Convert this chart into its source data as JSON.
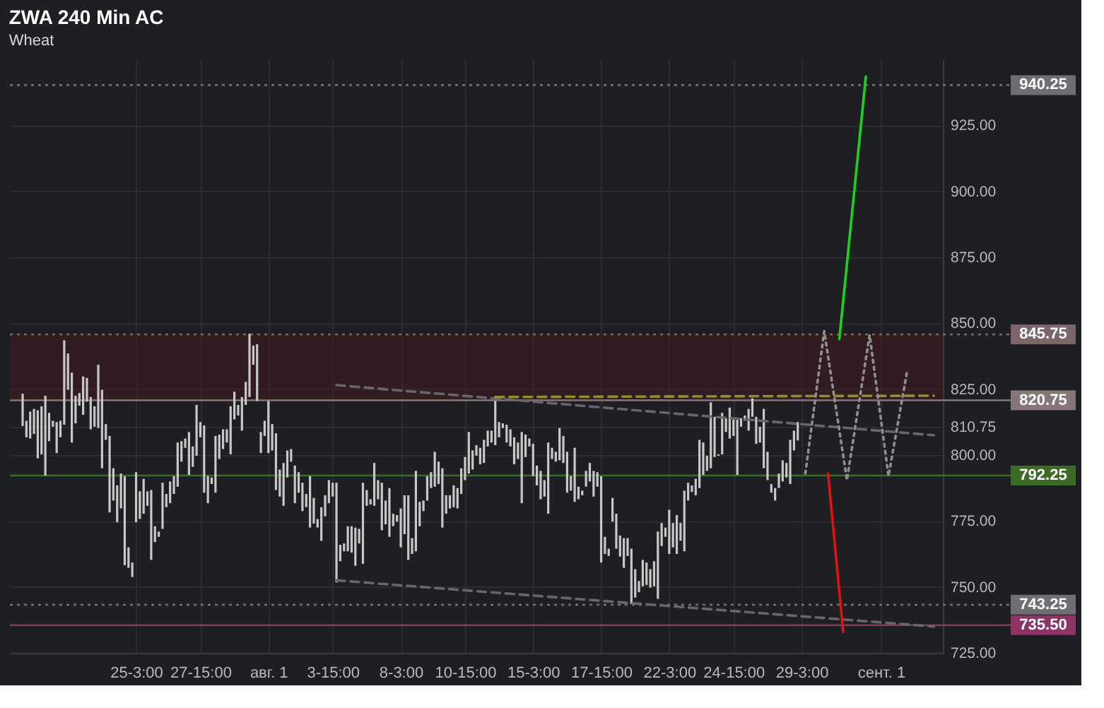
{
  "chart_data": {
    "type": "bar",
    "title": "ZWA 240 Min AC",
    "subtitle": "Wheat",
    "categories": [
      null,
      null,
      null,
      null,
      null,
      null,
      null,
      null,
      null,
      null,
      null,
      null,
      null,
      null,
      null,
      null,
      null,
      null,
      null,
      null,
      null,
      null,
      null,
      null,
      null,
      null,
      null,
      null,
      null,
      null,
      "25-3:00",
      null,
      null,
      null,
      null,
      null,
      null,
      null,
      null,
      null,
      null,
      null,
      null,
      null,
      null,
      null,
      null,
      "27-15:00",
      null,
      null,
      null,
      null,
      null,
      null,
      null,
      null,
      null,
      null,
      null,
      null,
      null,
      null,
      null,
      null,
      null,
      "авг. 1",
      null,
      null,
      null,
      null,
      null,
      null,
      null,
      null,
      null,
      null,
      null,
      null,
      null,
      null,
      null,
      null,
      "3-15:00",
      null,
      null,
      null,
      null,
      null,
      null,
      null,
      null,
      null,
      null,
      null,
      null,
      null,
      null,
      null,
      null,
      null,
      "8-3:00",
      null,
      null,
      null,
      null,
      null,
      null,
      null,
      null,
      null,
      null,
      null,
      null,
      null,
      null,
      null,
      null,
      "10-15:00",
      null,
      null,
      null,
      null,
      null,
      null,
      null,
      null,
      null,
      null,
      null,
      null,
      null,
      null,
      null,
      null,
      null,
      "15-3:00",
      null,
      null,
      null,
      null,
      null,
      null,
      null,
      null,
      null,
      null,
      null,
      null,
      null,
      null,
      null,
      null,
      null,
      "17-15:00",
      null,
      null,
      null,
      null,
      null,
      null,
      null,
      null,
      null,
      null,
      null,
      null,
      null,
      null,
      null,
      null,
      null,
      "22-3:00",
      null,
      null,
      null,
      null,
      null,
      null,
      null,
      null,
      null,
      null,
      null,
      null,
      null,
      null,
      null,
      null,
      "24-15:00",
      null,
      null,
      null,
      null,
      null,
      null,
      null,
      null,
      null,
      null,
      null,
      null,
      null,
      null,
      null,
      null,
      null,
      "29-3:00",
      null,
      null,
      null,
      null,
      null,
      null,
      null,
      null,
      null,
      null,
      null,
      null,
      null,
      null,
      null,
      null,
      null,
      null,
      null,
      null,
      "сент. 1",
      null,
      null,
      null,
      null,
      null,
      null,
      null,
      null,
      null,
      null,
      null,
      null,
      null,
      null
    ],
    "series": [
      {
        "color": "#c8c8c8",
        "base": [
          811.0,
          806.75,
          806.25,
          808.0,
          798.75,
          800.25,
          792.25,
          805.25,
          810.75,
          800.75,
          806.75,
          811.5,
          824.75,
          804.75,
          812.0,
          818.75,
          815.25,
          820.25,
          809.75,
          810.75,
          810.25,
          795.0,
          805.75,
          778.25,
          782.75,
          774.5,
          779.75,
          758.25,
          757.25,
          753.75,
          774.5,
          775.75,
          777.75,
          780.75,
          760.25,
          767.0,
          769.0,
          772.0,
          780.25,
          781.75,
          785.25,
          788.0,
          797.5,
          802.75,
          792.5,
          795.5,
          799.75,
          806.75,
          785.75,
          781.75,
          789.0,
          785.75,
          798.5,
          802.25,
          804.75,
          800.25,
          813.5,
          815.0,
          809.25,
          819.0,
          822.0,
          834.25,
          820.5,
          800.75,
          807.25,
          800.75,
          801.75,
          786.75,
          784.25,
          780.75,
          791.5,
          797.5,
          781.75,
          785.75,
          778.75,
          780.25,
          772.5,
          774.0,
          772.5,
          767.5,
          776.75,
          781.75,
          784.25,
          751.75,
          759.75,
          763.5,
          763.5,
          763.0,
          758.0,
          766.5,
          758.75,
          780.75,
          781.25,
          780.75,
          783.25,
          771.5,
          773.75,
          769.0,
          773.0,
          774.75,
          765.0,
          770.0,
          760.25,
          762.5,
          763.5,
          773.0,
          778.75,
          782.75,
          787.5,
          788.0,
          789.0,
          772.5,
          777.75,
          779.75,
          780.25,
          779.75,
          785.25,
          790.5,
          793.0,
          794.5,
          799.75,
          796.5,
          797.0,
          803.25,
          804.75,
          803.75,
          806.75,
          810.25,
          804.75,
          803.25,
          796.5,
          798.5,
          781.75,
          799.25,
          803.25,
          792.0,
          788.5,
          783.25,
          784.25,
          777.75,
          798.5,
          797.5,
          798.0,
          797.0,
          785.75,
          786.5,
          782.25,
          783.25,
          784.75,
          788.0,
          790.0,
          784.25,
          788.0,
          759.25,
          762.5,
          761.75,
          774.75,
          764.5,
          761.5,
          757.25,
          761.75,
          743.5,
          746.0,
          748.0,
          750.25,
          750.75,
          749.75,
          750.25,
          745.5,
          765.5,
          769.0,
          762.5,
          765.0,
          762.5,
          767.5,
          763.5,
          782.75,
          786.0,
          784.75,
          787.5,
          792.5,
          794.0,
          795.0,
          799.25,
          799.75,
          800.25,
          808.75,
          806.25,
          807.25,
          792.5,
          810.75,
          813.0,
          809.25,
          814.5,
          804.25,
          804.75,
          795.0,
          790.5,
          785.75,
          782.75,
          787.5,
          790.0,
          791.5,
          789.0,
          801.75,
          805.5,
          null,
          null,
          null,
          null,
          null,
          null,
          null,
          null,
          null,
          null,
          null,
          null,
          null,
          null,
          null,
          null,
          null,
          null,
          null,
          null,
          null,
          null,
          null,
          null,
          null,
          null,
          null,
          null,
          null,
          null,
          null,
          null,
          null,
          null,
          null,
          null
        ],
        "values": [
          12.25,
          6.25,
          10.25,
          9.5,
          18.25,
          18.25,
          30.25,
          10.75,
          2.25,
          11.75,
          6.25,
          32.0,
          13.75,
          26.5,
          10.5,
          4.75,
          14.5,
          9.0,
          12.25,
          7.75,
          24.0,
          29.75,
          6.0,
          29.0,
          12.25,
          14.0,
          13.25,
          33.75,
          7.75,
          5.5,
          19.0,
          10.5,
          13.25,
          5.5,
          26.5,
          6.0,
          2.0,
          17.5,
          5.0,
          8.25,
          6.75,
          16.75,
          7.75,
          3.5,
          16.25,
          7.75,
          19.25,
          5.75,
          25.5,
          10.25,
          2.5,
          21.5,
          9.25,
          7.5,
          5.0,
          18.25,
          10.5,
          4.0,
          12.75,
          8.75,
          24.0,
          7.25,
          21.5,
          8.0,
          5.75,
          19.75,
          10.0,
          21.5,
          10.25,
          16.25,
          10.25,
          4.75,
          14.25,
          7.75,
          10.75,
          5.0,
          19.5,
          9.75,
          3.25,
          12.75,
          8.0,
          8.75,
          5.25,
          37.75,
          6.25,
          3.0,
          9.5,
          10.0,
          14.5,
          5.5,
          30.75,
          6.0,
          2.0,
          16.25,
          7.25,
          18.0,
          9.0,
          18.5,
          4.75,
          2.5,
          14.75,
          14.75,
          24.5,
          6.0,
          30.5,
          9.25,
          4.0,
          9.25,
          6.0,
          13.25,
          8.5,
          22.5,
          7.0,
          5.0,
          8.25,
          7.75,
          9.75,
          8.75,
          15.75,
          7.25,
          4.0,
          6.25,
          8.75,
          6.0,
          4.5,
          16.75,
          5.75,
          1.75,
          6.75,
          6.5,
          10.25,
          6.25,
          27.0,
          8.5,
          3.0,
          12.25,
          7.5,
          10.75,
          6.25,
          27.0,
          4.25,
          3.75,
          12.25,
          10.25,
          15.5,
          5.5,
          20.5,
          4.75,
          1.75,
          6.0,
          7.0,
          9.75,
          5.5,
          32.75,
          6.5,
          2.75,
          9.0,
          13.25,
          8.0,
          11.25,
          6.75,
          21.0,
          10.75,
          4.25,
          10.0,
          8.5,
          7.0,
          9.5,
          25.5,
          8.75,
          3.5,
          16.75,
          9.25,
          14.75,
          6.75,
          23.0,
          6.75,
          2.5,
          6.25,
          18.25,
          12.25,
          5.75,
          25.0,
          15.25,
          0.5,
          15.75,
          5.25,
          11.75,
          6.75,
          21.5,
          3.25,
          2.0,
          8.25,
          7.0,
          10.25,
          6.0,
          22.5,
          10.75,
          3.25,
          4.75,
          5.5,
          8.0,
          5.5,
          16.75,
          7.5,
          7.0,
          null,
          null,
          null,
          null,
          null,
          null,
          null,
          null,
          null,
          null,
          null,
          null,
          null,
          null,
          null,
          null,
          null,
          null,
          null,
          null,
          null,
          null,
          null,
          null,
          null,
          null,
          null,
          null,
          null,
          null,
          null,
          null,
          null,
          null,
          null,
          null
        ]
      },
      {
        "type": "line",
        "color": "#66666b",
        "line_style": "dashed",
        "values": [
          null,
          null,
          null,
          null,
          null,
          null,
          null,
          null,
          null,
          null,
          null,
          null,
          null,
          null,
          null,
          null,
          null,
          null,
          null,
          null,
          null,
          null,
          null,
          null,
          null,
          null,
          null,
          null,
          null,
          null,
          null,
          null,
          null,
          null,
          null,
          null,
          null,
          null,
          null,
          null,
          null,
          null,
          null,
          null,
          null,
          null,
          null,
          null,
          null,
          null,
          null,
          null,
          null,
          null,
          null,
          null,
          null,
          null,
          null,
          null,
          null,
          null,
          null,
          null,
          null,
          null,
          null,
          null,
          null,
          null,
          null,
          null,
          null,
          null,
          null,
          null,
          null,
          null,
          null,
          null,
          null,
          null,
          null,
          826.5,
          null,
          null,
          null,
          null,
          null,
          null,
          null,
          null,
          null,
          null,
          null,
          null,
          null,
          null,
          null,
          null,
          null,
          null,
          null,
          null,
          null,
          null,
          null,
          null,
          null,
          null,
          null,
          null,
          null,
          null,
          null,
          null,
          null,
          null,
          null,
          null,
          null,
          null,
          null,
          null,
          null,
          null,
          null,
          null,
          null,
          null,
          null,
          null,
          null,
          null,
          null,
          null,
          null,
          null,
          null,
          null,
          null,
          null,
          null,
          null,
          null,
          null,
          null,
          null,
          null,
          null,
          null,
          null,
          null,
          null,
          null,
          null,
          null,
          null,
          null,
          null,
          null,
          null,
          null,
          null,
          null,
          null,
          null,
          null,
          null,
          null,
          null,
          null,
          null,
          null,
          null,
          null,
          null,
          null,
          null,
          null,
          null,
          null,
          null,
          null,
          null,
          null,
          null,
          null,
          null,
          null,
          null,
          null,
          null,
          null,
          null,
          null,
          null,
          null,
          null,
          null,
          null,
          null,
          null,
          null,
          null,
          null,
          null,
          null,
          null,
          null,
          null,
          null,
          null,
          null,
          null,
          null,
          null,
          null,
          null,
          null,
          null,
          null,
          null,
          null,
          null,
          null,
          null,
          null,
          null,
          null,
          null,
          null,
          null,
          null,
          null,
          null,
          null,
          null,
          null,
          null,
          null,
          807.5
        ]
      },
      {
        "type": "line",
        "color": "#66666b",
        "line_style": "dashed",
        "values": [
          null,
          null,
          null,
          null,
          null,
          null,
          null,
          null,
          null,
          null,
          null,
          null,
          null,
          null,
          null,
          null,
          null,
          null,
          null,
          null,
          null,
          null,
          null,
          null,
          null,
          null,
          null,
          null,
          null,
          null,
          null,
          null,
          null,
          null,
          null,
          null,
          null,
          null,
          null,
          null,
          null,
          null,
          null,
          null,
          null,
          null,
          null,
          null,
          null,
          null,
          null,
          null,
          null,
          null,
          null,
          null,
          null,
          null,
          null,
          null,
          null,
          null,
          null,
          null,
          null,
          null,
          null,
          null,
          null,
          null,
          null,
          null,
          null,
          null,
          null,
          null,
          null,
          null,
          null,
          null,
          null,
          null,
          null,
          752.5,
          null,
          null,
          null,
          null,
          null,
          null,
          null,
          null,
          null,
          null,
          null,
          null,
          null,
          null,
          null,
          null,
          null,
          null,
          null,
          null,
          null,
          null,
          null,
          null,
          null,
          null,
          null,
          null,
          null,
          null,
          null,
          null,
          null,
          null,
          null,
          null,
          null,
          null,
          null,
          null,
          null,
          null,
          null,
          null,
          null,
          null,
          null,
          null,
          null,
          null,
          null,
          null,
          null,
          null,
          null,
          null,
          null,
          null,
          null,
          null,
          null,
          null,
          null,
          null,
          null,
          null,
          null,
          null,
          null,
          null,
          null,
          null,
          null,
          null,
          null,
          null,
          null,
          null,
          null,
          null,
          null,
          null,
          null,
          null,
          null,
          null,
          null,
          null,
          null,
          null,
          null,
          null,
          null,
          null,
          null,
          null,
          null,
          null,
          null,
          null,
          null,
          null,
          null,
          null,
          null,
          null,
          null,
          null,
          null,
          null,
          null,
          null,
          null,
          null,
          null,
          null,
          null,
          null,
          null,
          null,
          null,
          null,
          null,
          null,
          null,
          null,
          null,
          null,
          null,
          null,
          null,
          null,
          null,
          null,
          null,
          null,
          null,
          null,
          null,
          null,
          null,
          null,
          null,
          null,
          null,
          null,
          null,
          null,
          null,
          null,
          null,
          null,
          null,
          null,
          null,
          null,
          null,
          735.0
        ]
      },
      {
        "type": "line",
        "color": "#8f8f2e",
        "line_style": "dashed",
        "values": [
          null,
          null,
          null,
          null,
          null,
          null,
          null,
          null,
          null,
          null,
          null,
          null,
          null,
          null,
          null,
          null,
          null,
          null,
          null,
          null,
          null,
          null,
          null,
          null,
          null,
          null,
          null,
          null,
          null,
          null,
          null,
          null,
          null,
          null,
          null,
          null,
          null,
          null,
          null,
          null,
          null,
          null,
          null,
          null,
          null,
          null,
          null,
          null,
          null,
          null,
          null,
          null,
          null,
          null,
          null,
          null,
          null,
          null,
          null,
          null,
          null,
          null,
          null,
          null,
          null,
          null,
          null,
          null,
          null,
          null,
          null,
          null,
          null,
          null,
          null,
          null,
          null,
          null,
          null,
          null,
          null,
          null,
          null,
          null,
          null,
          null,
          null,
          null,
          null,
          null,
          null,
          null,
          null,
          null,
          null,
          null,
          null,
          null,
          null,
          null,
          null,
          null,
          null,
          null,
          null,
          null,
          null,
          null,
          null,
          null,
          null,
          null,
          null,
          null,
          null,
          null,
          null,
          null,
          null,
          null,
          null,
          null,
          null,
          null,
          null,
          822.0,
          null,
          null,
          null,
          null,
          null,
          null,
          null,
          null,
          null,
          null,
          null,
          null,
          null,
          null,
          null,
          null,
          null,
          null,
          null,
          null,
          null,
          null,
          null,
          null,
          null,
          null,
          null,
          null,
          null,
          null,
          null,
          null,
          null,
          null,
          null,
          null,
          null,
          null,
          null,
          null,
          null,
          null,
          null,
          null,
          null,
          null,
          null,
          null,
          null,
          null,
          null,
          null,
          null,
          null,
          null,
          null,
          null,
          null,
          null,
          null,
          null,
          null,
          null,
          null,
          null,
          null,
          null,
          null,
          null,
          null,
          null,
          null,
          null,
          null,
          null,
          null,
          null,
          null,
          null,
          null,
          null,
          null,
          null,
          null,
          null,
          null,
          null,
          null,
          null,
          null,
          null,
          null,
          null,
          null,
          null,
          null,
          null,
          null,
          null,
          null,
          null,
          null,
          null,
          null,
          null,
          null,
          null,
          null,
          null,
          null,
          null,
          null,
          null,
          null,
          null,
          822.5
        ]
      },
      {
        "type": "line",
        "color": "#8e8e8e",
        "line_style": "dotted",
        "values": [
          null,
          null,
          null,
          null,
          null,
          null,
          null,
          null,
          null,
          null,
          null,
          null,
          null,
          null,
          null,
          null,
          null,
          null,
          null,
          null,
          null,
          null,
          null,
          null,
          null,
          null,
          null,
          null,
          null,
          null,
          null,
          null,
          null,
          null,
          null,
          null,
          null,
          null,
          null,
          null,
          null,
          null,
          null,
          null,
          null,
          null,
          null,
          null,
          null,
          null,
          null,
          null,
          null,
          null,
          null,
          null,
          null,
          null,
          null,
          null,
          null,
          null,
          null,
          null,
          null,
          null,
          null,
          null,
          null,
          null,
          null,
          null,
          null,
          null,
          null,
          null,
          null,
          null,
          null,
          null,
          null,
          null,
          null,
          null,
          null,
          null,
          null,
          null,
          null,
          null,
          null,
          null,
          null,
          null,
          null,
          null,
          null,
          null,
          null,
          null,
          null,
          null,
          null,
          null,
          null,
          null,
          null,
          null,
          null,
          null,
          null,
          null,
          null,
          null,
          null,
          null,
          null,
          null,
          null,
          null,
          null,
          null,
          null,
          null,
          null,
          null,
          null,
          null,
          null,
          null,
          null,
          null,
          null,
          null,
          null,
          null,
          null,
          null,
          null,
          null,
          null,
          null,
          null,
          null,
          null,
          null,
          null,
          null,
          null,
          null,
          null,
          null,
          null,
          null,
          null,
          null,
          null,
          null,
          null,
          null,
          null,
          null,
          null,
          null,
          null,
          null,
          null,
          null,
          null,
          null,
          null,
          null,
          null,
          null,
          null,
          null,
          null,
          null,
          null,
          null,
          null,
          null,
          null,
          null,
          null,
          null,
          null,
          null,
          null,
          null,
          null,
          null,
          null,
          null,
          null,
          null,
          null,
          null,
          null,
          null,
          null,
          null,
          null,
          null,
          null,
          null,
          null,
          793.0,
          null,
          null,
          null,
          null,
          847.0,
          null,
          null,
          null,
          null,
          null,
          790.5,
          null,
          null,
          null,
          null,
          null,
          845.5,
          null,
          null,
          null,
          null,
          792.0,
          null,
          null,
          null,
          null,
          832.5,
          null,
          null,
          null,
          null,
          null,
          null,
          null
        ]
      },
      {
        "type": "line",
        "color": "#1fd11f",
        "line_style": "solid",
        "values": [
          null,
          null,
          null,
          null,
          null,
          null,
          null,
          null,
          null,
          null,
          null,
          null,
          null,
          null,
          null,
          null,
          null,
          null,
          null,
          null,
          null,
          null,
          null,
          null,
          null,
          null,
          null,
          null,
          null,
          null,
          null,
          null,
          null,
          null,
          null,
          null,
          null,
          null,
          null,
          null,
          null,
          null,
          null,
          null,
          null,
          null,
          null,
          null,
          null,
          null,
          null,
          null,
          null,
          null,
          null,
          null,
          null,
          null,
          null,
          null,
          null,
          null,
          null,
          null,
          null,
          null,
          null,
          null,
          null,
          null,
          null,
          null,
          null,
          null,
          null,
          null,
          null,
          null,
          null,
          null,
          null,
          null,
          null,
          null,
          null,
          null,
          null,
          null,
          null,
          null,
          null,
          null,
          null,
          null,
          null,
          null,
          null,
          null,
          null,
          null,
          null,
          null,
          null,
          null,
          null,
          null,
          null,
          null,
          null,
          null,
          null,
          null,
          null,
          null,
          null,
          null,
          null,
          null,
          null,
          null,
          null,
          null,
          null,
          null,
          null,
          null,
          null,
          null,
          null,
          null,
          null,
          null,
          null,
          null,
          null,
          null,
          null,
          null,
          null,
          null,
          null,
          null,
          null,
          null,
          null,
          null,
          null,
          null,
          null,
          null,
          null,
          null,
          null,
          null,
          null,
          null,
          null,
          null,
          null,
          null,
          null,
          null,
          null,
          null,
          null,
          null,
          null,
          null,
          null,
          null,
          null,
          null,
          null,
          null,
          null,
          null,
          null,
          null,
          null,
          null,
          null,
          null,
          null,
          null,
          null,
          null,
          null,
          null,
          null,
          null,
          null,
          null,
          null,
          null,
          null,
          null,
          null,
          null,
          null,
          null,
          null,
          null,
          null,
          null,
          null,
          null,
          null,
          null,
          null,
          null,
          null,
          null,
          null,
          null,
          null,
          null,
          844.0,
          null,
          null,
          null,
          null,
          null,
          null,
          943.5,
          null,
          null,
          null,
          null,
          null,
          null,
          null,
          null,
          null,
          null,
          null,
          null,
          null,
          null,
          null,
          null,
          null,
          null
        ]
      },
      {
        "type": "line",
        "color": "#e01212",
        "line_style": "solid",
        "values": [
          null,
          null,
          null,
          null,
          null,
          null,
          null,
          null,
          null,
          null,
          null,
          null,
          null,
          null,
          null,
          null,
          null,
          null,
          null,
          null,
          null,
          null,
          null,
          null,
          null,
          null,
          null,
          null,
          null,
          null,
          null,
          null,
          null,
          null,
          null,
          null,
          null,
          null,
          null,
          null,
          null,
          null,
          null,
          null,
          null,
          null,
          null,
          null,
          null,
          null,
          null,
          null,
          null,
          null,
          null,
          null,
          null,
          null,
          null,
          null,
          null,
          null,
          null,
          null,
          null,
          null,
          null,
          null,
          null,
          null,
          null,
          null,
          null,
          null,
          null,
          null,
          null,
          null,
          null,
          null,
          null,
          null,
          null,
          null,
          null,
          null,
          null,
          null,
          null,
          null,
          null,
          null,
          null,
          null,
          null,
          null,
          null,
          null,
          null,
          null,
          null,
          null,
          null,
          null,
          null,
          null,
          null,
          null,
          null,
          null,
          null,
          null,
          null,
          null,
          null,
          null,
          null,
          null,
          null,
          null,
          null,
          null,
          null,
          null,
          null,
          null,
          null,
          null,
          null,
          null,
          null,
          null,
          null,
          null,
          null,
          null,
          null,
          null,
          null,
          null,
          null,
          null,
          null,
          null,
          null,
          null,
          null,
          null,
          null,
          null,
          null,
          null,
          null,
          null,
          null,
          null,
          null,
          null,
          null,
          null,
          null,
          null,
          null,
          null,
          null,
          null,
          null,
          null,
          null,
          null,
          null,
          null,
          null,
          null,
          null,
          null,
          null,
          null,
          null,
          null,
          null,
          null,
          null,
          null,
          null,
          null,
          null,
          null,
          null,
          null,
          null,
          null,
          null,
          null,
          null,
          null,
          null,
          null,
          null,
          null,
          null,
          null,
          null,
          null,
          null,
          null,
          null,
          null,
          null,
          null,
          null,
          null,
          null,
          793.0,
          null,
          null,
          null,
          733.0,
          null,
          null,
          null,
          null,
          null,
          null,
          null,
          null,
          null,
          null,
          null,
          null,
          null,
          null,
          null,
          null,
          null,
          null,
          null,
          null,
          null,
          null,
          null,
          null
        ]
      }
    ],
    "ylim": [
      725,
      950
    ],
    "yticks": [
      {
        "value": 725,
        "label": "725.00"
      },
      {
        "value": 750,
        "label": "750.00"
      },
      {
        "value": 775,
        "label": "775.00"
      },
      {
        "value": 800,
        "label": "800.00"
      },
      810.75,
      {
        "value": 825,
        "label": "825.00"
      },
      {
        "value": 850,
        "label": "850.00"
      },
      {
        "value": 875,
        "label": "875.00"
      },
      {
        "value": 900,
        "label": "900.00"
      },
      {
        "value": 925,
        "label": "925.00"
      }
    ],
    "grid": true,
    "bands": [
      {
        "axis": "y",
        "from": 820.75,
        "to": 845.75,
        "color": "#46171f"
      }
    ],
    "ref_lines": [
      {
        "axis": "y",
        "value": 940.25,
        "label": "940.25",
        "color": "#6f6f73",
        "line_style": "dotted"
      },
      {
        "axis": "y",
        "value": 845.75,
        "label": "845.75",
        "color": "#7c666b",
        "line_style": "dotted"
      },
      {
        "axis": "y",
        "value": 820.75,
        "label": "820.75",
        "color": "#86767a",
        "line_style": "solid"
      },
      {
        "axis": "y",
        "value": 792.25,
        "label": "792.25",
        "color": "#3b6b25",
        "line_style": "solid"
      },
      {
        "axis": "y",
        "value": 743.25,
        "label": "743.25",
        "color": "#6f6f73",
        "line_style": "dotted"
      },
      {
        "axis": "y",
        "value": 735.5,
        "label": "735.50",
        "color": "#8d3366",
        "line_style": "solid"
      }
    ]
  }
}
